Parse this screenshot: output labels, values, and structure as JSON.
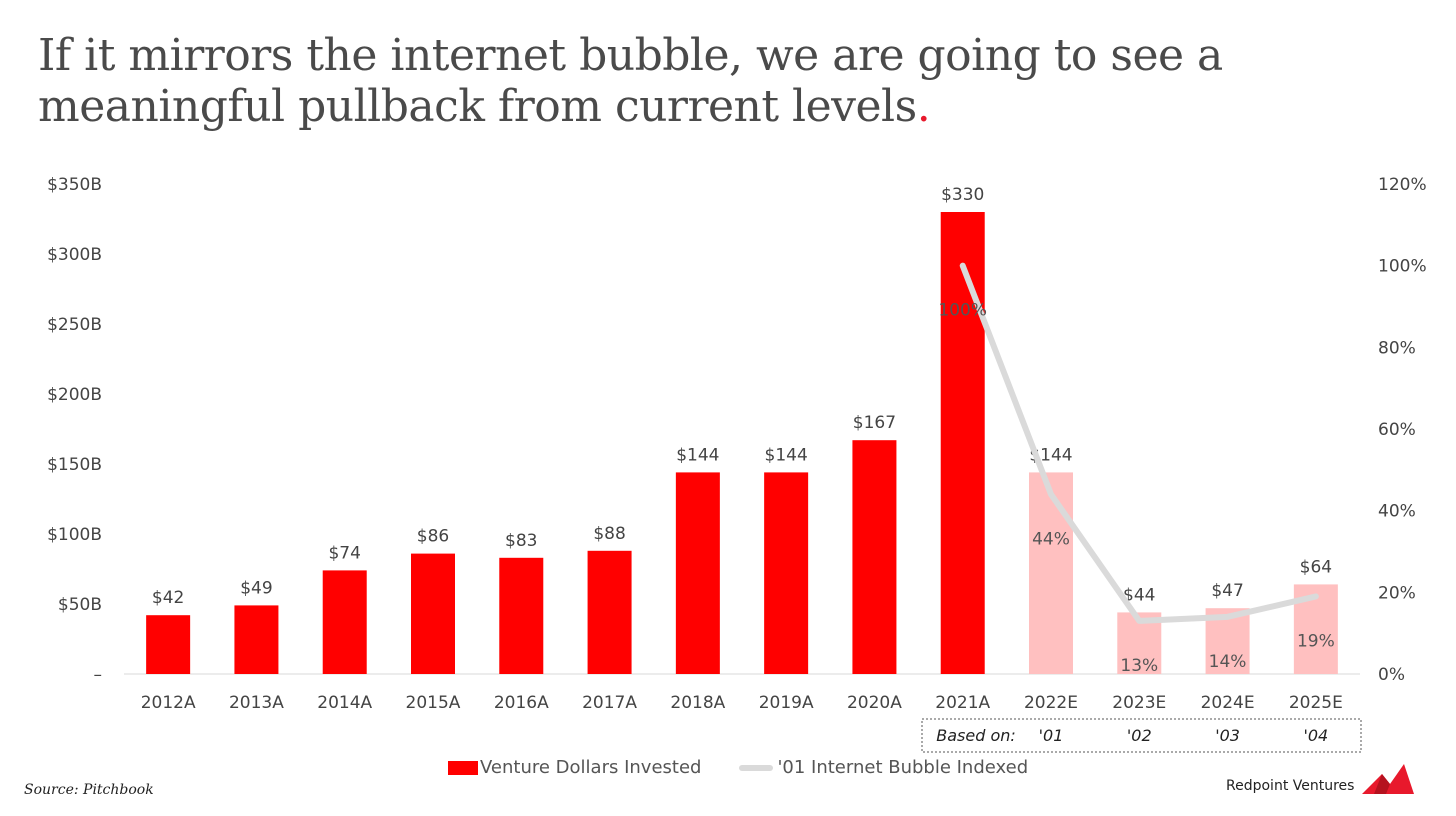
{
  "title": {
    "text": "If it mirrors the internet bubble, we are going to see a meaningful pullback from current levels",
    "dot": "."
  },
  "source": "Source: Pitchbook",
  "brand": "Redpoint Ventures",
  "colors": {
    "actual_bar": "#ff0000",
    "estimate_bar": "#ffc0c0",
    "line": "#dadada",
    "title_dot": "#e8192c"
  },
  "chart_data": {
    "type": "bar",
    "categories": [
      "2012A",
      "2013A",
      "2014A",
      "2015A",
      "2016A",
      "2017A",
      "2018A",
      "2019A",
      "2020A",
      "2021A",
      "2022E",
      "2023E",
      "2024E",
      "2025E"
    ],
    "series": [
      {
        "name": "Venture Dollars Invested",
        "type": "bar",
        "axis": "left",
        "values": [
          42,
          49,
          74,
          86,
          83,
          88,
          144,
          144,
          167,
          330,
          144,
          44,
          47,
          64
        ],
        "labels": [
          "$42",
          "$49",
          "$74",
          "$86",
          "$83",
          "$88",
          "$144",
          "$144",
          "$167",
          "$330",
          "$144",
          "$44",
          "$47",
          "$64"
        ],
        "estimate": [
          false,
          false,
          false,
          false,
          false,
          false,
          false,
          false,
          false,
          false,
          true,
          true,
          true,
          true
        ]
      },
      {
        "name": "'01 Internet Bubble Indexed",
        "type": "line",
        "axis": "right",
        "x": [
          "2021A",
          "2022E",
          "2023E",
          "2024E",
          "2025E"
        ],
        "values": [
          100,
          44,
          13,
          14,
          19
        ],
        "labels": [
          "100%",
          "44%",
          "13%",
          "14%",
          "19%"
        ]
      }
    ],
    "y_left": {
      "ylim": [
        0,
        350
      ],
      "ticks": [
        0,
        50,
        100,
        150,
        200,
        250,
        300,
        350
      ],
      "tick_labels": [
        "–",
        "$50B",
        "$100B",
        "$150B",
        "$200B",
        "$250B",
        "$300B",
        "$350B"
      ]
    },
    "y_right": {
      "ylim": [
        0,
        120
      ],
      "ticks": [
        0,
        20,
        40,
        60,
        80,
        100,
        120
      ],
      "tick_labels": [
        "0%",
        "20%",
        "40%",
        "60%",
        "80%",
        "100%",
        "120%"
      ]
    },
    "based_on": {
      "label": "Based on:",
      "categories": [
        "2022E",
        "2023E",
        "2024E",
        "2025E"
      ],
      "values": [
        "'01",
        "'02",
        "'03",
        "'04"
      ]
    },
    "legend": "bottom-center",
    "grid": false
  }
}
